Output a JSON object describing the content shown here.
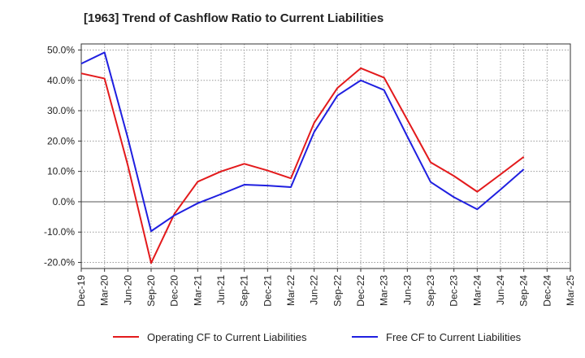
{
  "chart_data": {
    "type": "line",
    "title": "[1963]  Trend of Cashflow Ratio to Current Liabilities",
    "xlabel": "",
    "ylabel": "",
    "categories": [
      "Dec-19",
      "Mar-20",
      "Jun-20",
      "Sep-20",
      "Dec-20",
      "Mar-21",
      "Jun-21",
      "Sep-21",
      "Dec-21",
      "Mar-22",
      "Jun-22",
      "Sep-22",
      "Dec-22",
      "Mar-23",
      "Jun-23",
      "Sep-23",
      "Dec-23",
      "Mar-24",
      "Jun-24",
      "Sep-24",
      "Dec-24",
      "Mar-25"
    ],
    "ylim": [
      -22,
      52
    ],
    "yticks": [
      50,
      40,
      30,
      20,
      10,
      0,
      -10,
      -20
    ],
    "ytick_labels": [
      "50.0%",
      "40.0%",
      "30.0%",
      "20.0%",
      "10.0%",
      "0.0%",
      "-10.0%",
      "-20.0%"
    ],
    "grid": true,
    "legend_position": "bottom",
    "series": [
      {
        "name": "Operating CF to Current Liabilities",
        "color": "#e31a1c",
        "values": [
          42.3,
          40.6,
          12.0,
          -20.2,
          -4.0,
          6.6,
          10.0,
          12.5,
          10.3,
          7.7,
          26.0,
          37.5,
          44.0,
          40.9,
          27.0,
          13.0,
          8.5,
          3.3,
          9.0,
          14.8,
          null,
          null
        ]
      },
      {
        "name": "Free CF to Current Liabilities",
        "color": "#1f1fe0",
        "values": [
          45.5,
          49.2,
          21.0,
          -9.7,
          -4.5,
          -0.5,
          2.5,
          5.6,
          5.3,
          4.8,
          23.0,
          35.0,
          40.0,
          36.8,
          21.5,
          6.5,
          1.5,
          -2.5,
          4.0,
          10.7,
          null,
          null
        ]
      }
    ]
  }
}
